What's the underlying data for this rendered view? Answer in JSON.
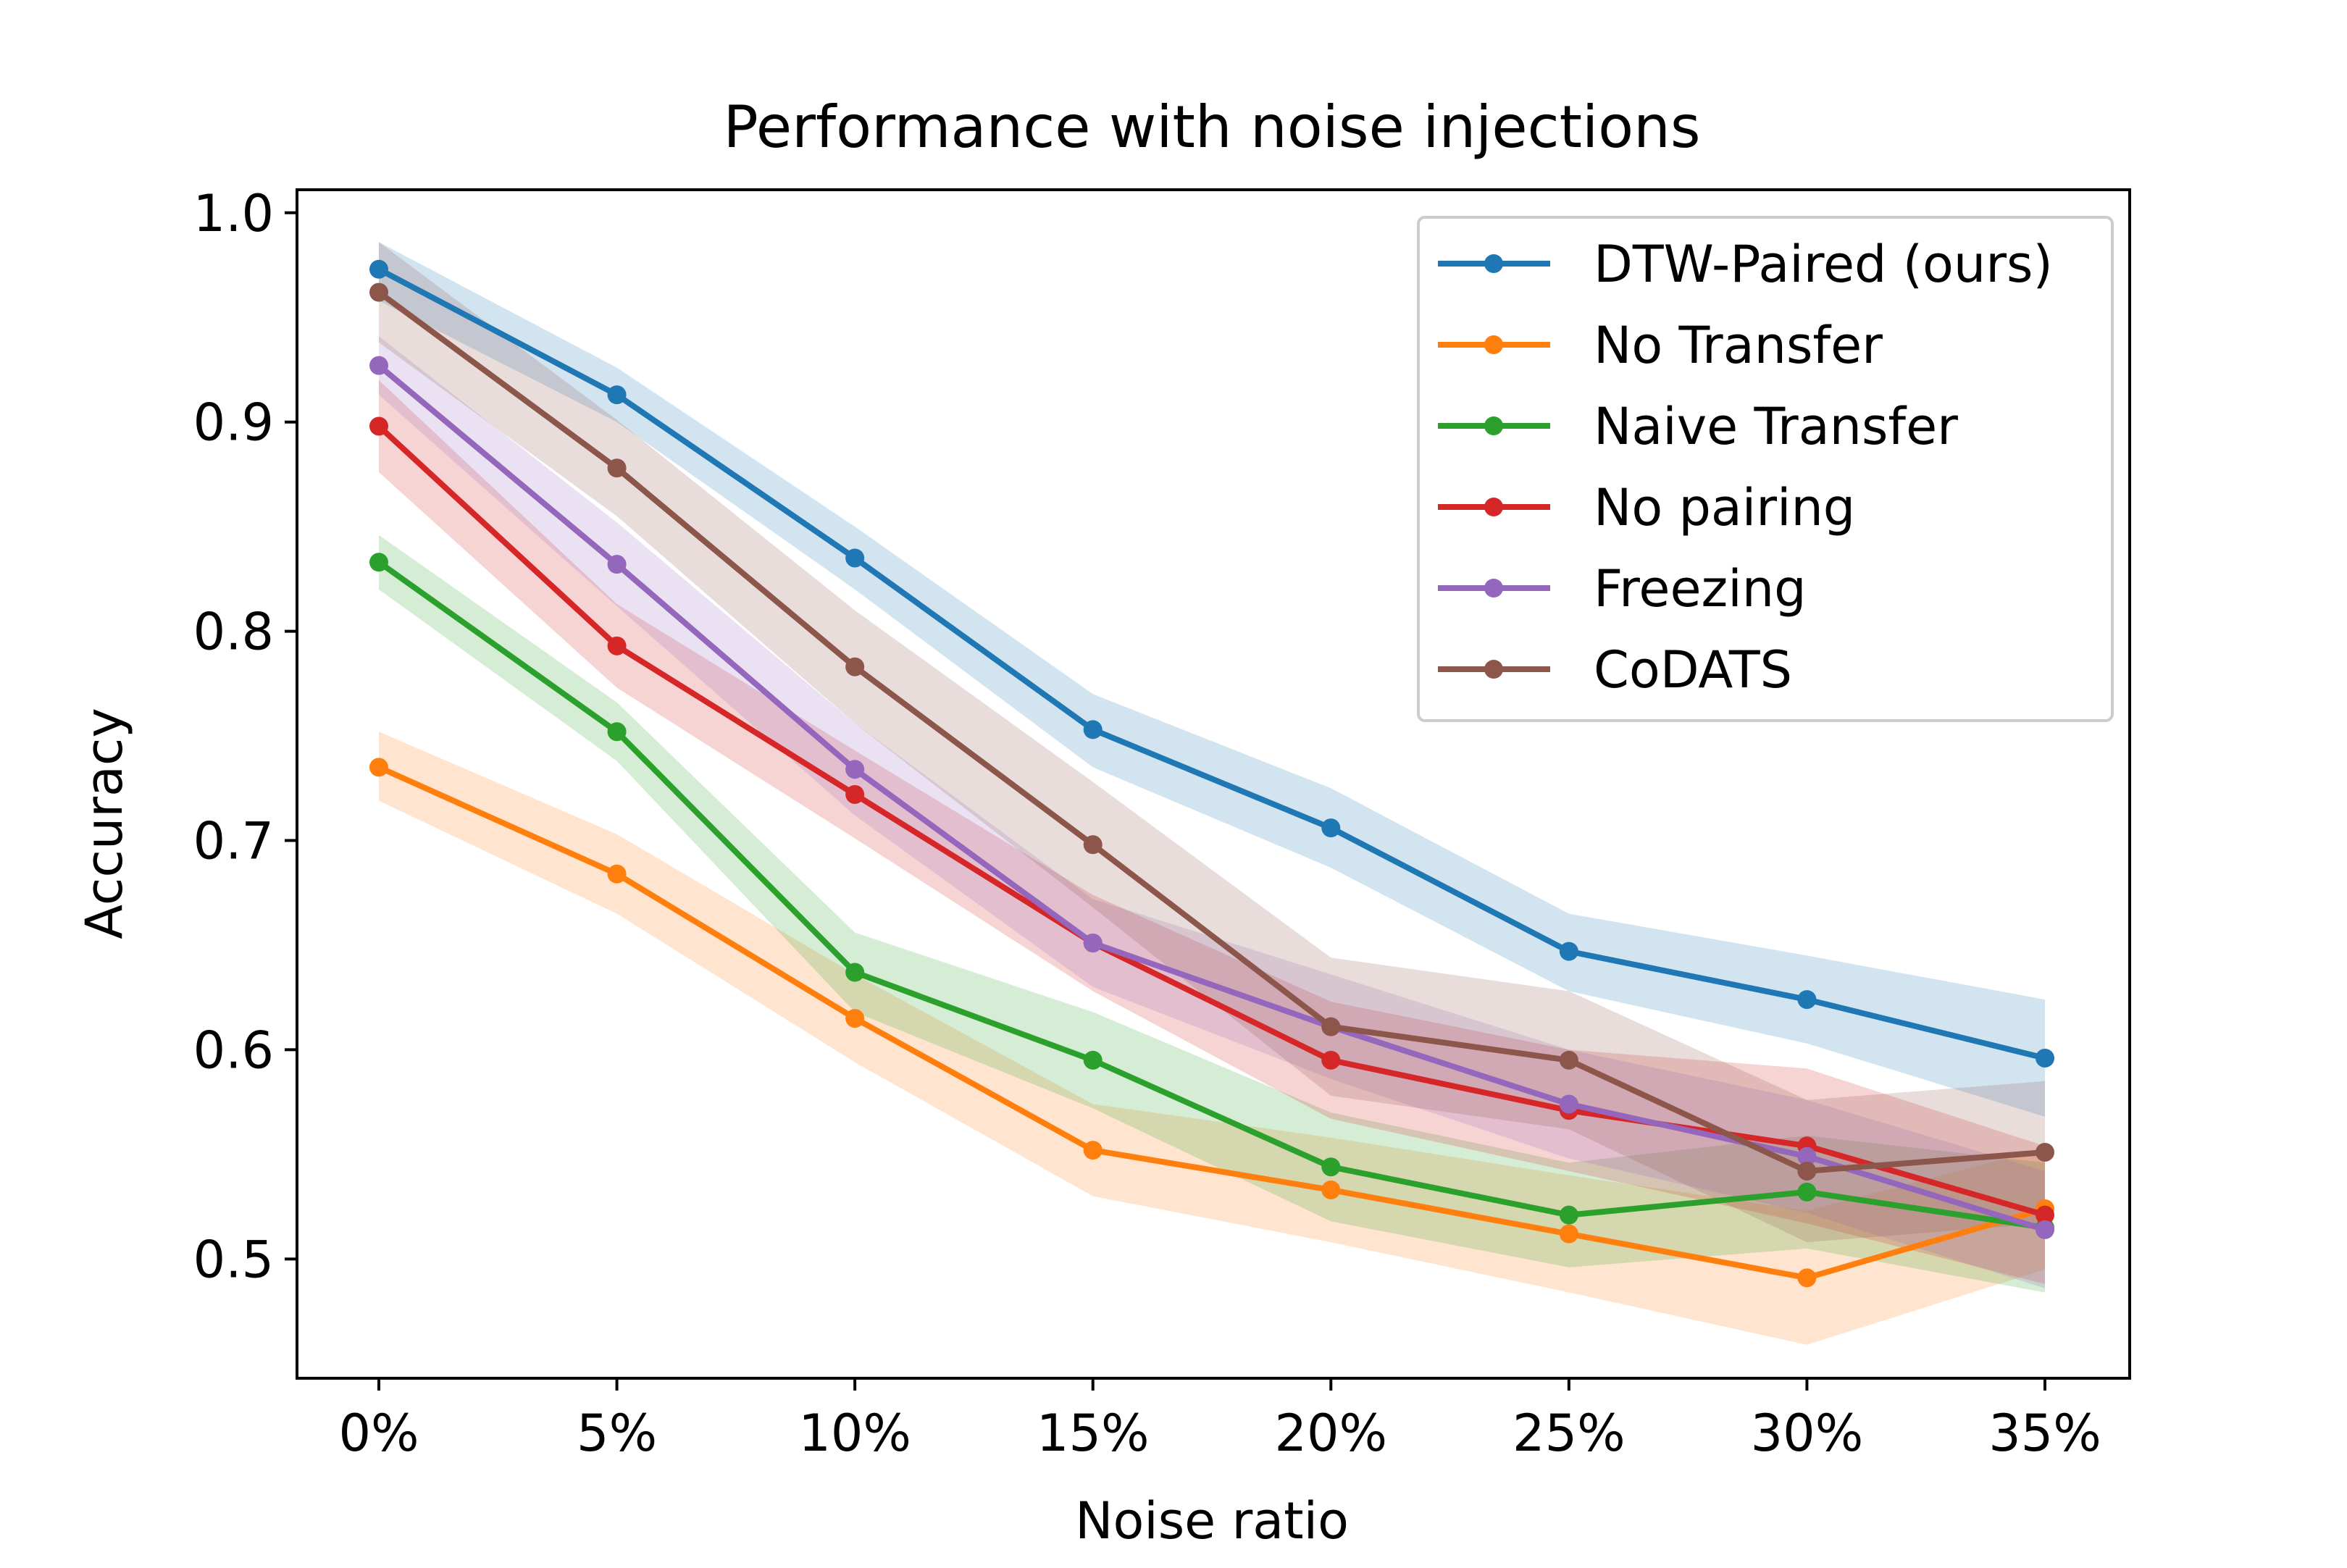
{
  "chart_data": {
    "type": "line",
    "title": "Performance with noise injections",
    "xlabel": "Noise ratio",
    "ylabel": "Accuracy",
    "categories": [
      "0%",
      "5%",
      "10%",
      "15%",
      "20%",
      "25%",
      "30%",
      "35%"
    ],
    "ylim": [
      0.443,
      1.011
    ],
    "yticks": [
      0.5,
      0.6,
      0.7,
      0.8,
      0.9,
      1.0
    ],
    "ytick_labels": [
      "0.5",
      "0.6",
      "0.7",
      "0.8",
      "0.9",
      "1.0"
    ],
    "legend_position": "top-right",
    "grid": false,
    "series": [
      {
        "name": "DTW-Paired (ours)",
        "color": "#1f77b4",
        "values": [
          0.973,
          0.913,
          0.835,
          0.753,
          0.706,
          0.647,
          0.624,
          0.596
        ],
        "lower": [
          0.958,
          0.9,
          0.82,
          0.735,
          0.687,
          0.628,
          0.603,
          0.568
        ],
        "upper": [
          0.986,
          0.926,
          0.85,
          0.77,
          0.725,
          0.665,
          0.645,
          0.624
        ]
      },
      {
        "name": "No Transfer",
        "color": "#ff7f0e",
        "values": [
          0.735,
          0.684,
          0.615,
          0.552,
          0.533,
          0.512,
          0.491,
          0.524
        ],
        "lower": [
          0.719,
          0.665,
          0.594,
          0.53,
          0.508,
          0.484,
          0.459,
          0.495
        ],
        "upper": [
          0.752,
          0.703,
          0.636,
          0.574,
          0.558,
          0.54,
          0.523,
          0.553
        ]
      },
      {
        "name": "Naive Transfer",
        "color": "#2ca02c",
        "values": [
          0.833,
          0.752,
          0.637,
          0.595,
          0.544,
          0.521,
          0.532,
          0.515
        ],
        "lower": [
          0.82,
          0.738,
          0.618,
          0.572,
          0.518,
          0.496,
          0.505,
          0.484
        ],
        "upper": [
          0.846,
          0.766,
          0.656,
          0.618,
          0.57,
          0.546,
          0.559,
          0.546
        ]
      },
      {
        "name": "No pairing",
        "color": "#d62728",
        "values": [
          0.898,
          0.793,
          0.722,
          0.651,
          0.595,
          0.571,
          0.554,
          0.521
        ],
        "lower": [
          0.876,
          0.773,
          0.701,
          0.628,
          0.567,
          0.542,
          0.517,
          0.488
        ],
        "upper": [
          0.92,
          0.813,
          0.743,
          0.674,
          0.623,
          0.6,
          0.591,
          0.554
        ]
      },
      {
        "name": "Freezing",
        "color": "#9467bd",
        "values": [
          0.927,
          0.832,
          0.734,
          0.651,
          0.611,
          0.574,
          0.549,
          0.514
        ],
        "lower": [
          0.913,
          0.812,
          0.712,
          0.63,
          0.586,
          0.548,
          0.522,
          0.486
        ],
        "upper": [
          0.941,
          0.852,
          0.756,
          0.672,
          0.636,
          0.6,
          0.576,
          0.542
        ]
      },
      {
        "name": "CoDATS",
        "color": "#8c564b",
        "values": [
          0.962,
          0.878,
          0.783,
          0.698,
          0.611,
          0.595,
          0.542,
          0.551
        ],
        "lower": [
          0.938,
          0.855,
          0.756,
          0.668,
          0.578,
          0.562,
          0.508,
          0.517
        ],
        "upper": [
          0.986,
          0.901,
          0.81,
          0.728,
          0.644,
          0.628,
          0.576,
          0.585
        ]
      }
    ]
  }
}
